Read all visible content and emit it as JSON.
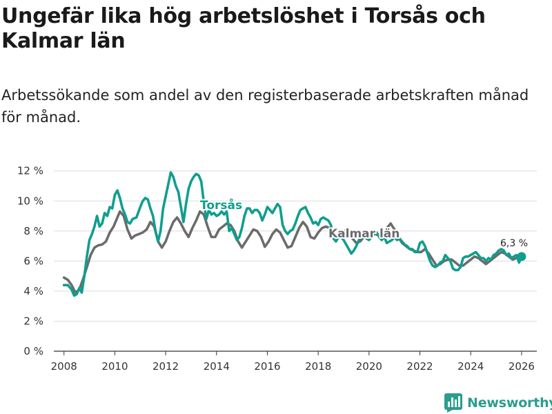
{
  "title": "Ungefär lika hög arbetslöshet i Torsås och Kalmar län",
  "subtitle": "Arbetssökande som andel av den registerbaserade arbetskraften månad för månad.",
  "brand": {
    "name": "Newsworthy",
    "icon": "bar-chart-logo-icon"
  },
  "colors": {
    "torsas": "#0f9e8e",
    "kalmar": "#6b6b6b",
    "grid": "#dcdcdc",
    "text": "#333333"
  },
  "chart_data": {
    "type": "line",
    "xlabel": "",
    "ylabel": "",
    "xlim": [
      2007.6,
      2026.6
    ],
    "ylim": [
      0,
      12.4
    ],
    "x_ticks": [
      2008,
      2010,
      2012,
      2014,
      2016,
      2018,
      2020,
      2022,
      2024,
      2026
    ],
    "x_tick_labels": [
      "2008",
      "2010",
      "2012",
      "2014",
      "2016",
      "2018",
      "2020",
      "2022",
      "2024",
      "2026"
    ],
    "y_ticks": [
      0,
      2,
      4,
      6,
      8,
      10,
      12
    ],
    "y_tick_labels": [
      "0 %",
      "2 %",
      "4 %",
      "6 %",
      "8 %",
      "10 %",
      "12 %"
    ],
    "end_label": "6,3 %",
    "series": [
      {
        "name": "Kalmar län",
        "label": "Kalmar län",
        "points": [
          [
            2008.0,
            4.9
          ],
          [
            2008.15,
            4.75
          ],
          [
            2008.3,
            4.4
          ],
          [
            2008.45,
            3.9
          ],
          [
            2008.6,
            4.1
          ],
          [
            2008.75,
            4.8
          ],
          [
            2008.9,
            5.6
          ],
          [
            2009.05,
            6.4
          ],
          [
            2009.2,
            6.9
          ],
          [
            2009.35,
            7.05
          ],
          [
            2009.5,
            7.1
          ],
          [
            2009.65,
            7.3
          ],
          [
            2009.8,
            7.9
          ],
          [
            2009.95,
            8.3
          ],
          [
            2010.1,
            8.9
          ],
          [
            2010.2,
            9.3
          ],
          [
            2010.35,
            9.0
          ],
          [
            2010.5,
            8.1
          ],
          [
            2010.65,
            7.5
          ],
          [
            2010.8,
            7.7
          ],
          [
            2010.95,
            7.8
          ],
          [
            2011.1,
            7.9
          ],
          [
            2011.25,
            8.1
          ],
          [
            2011.4,
            8.6
          ],
          [
            2011.55,
            8.3
          ],
          [
            2011.7,
            7.3
          ],
          [
            2011.85,
            6.9
          ],
          [
            2012.0,
            7.3
          ],
          [
            2012.15,
            8.0
          ],
          [
            2012.3,
            8.6
          ],
          [
            2012.45,
            8.9
          ],
          [
            2012.6,
            8.5
          ],
          [
            2012.75,
            8.0
          ],
          [
            2012.9,
            7.6
          ],
          [
            2013.05,
            8.2
          ],
          [
            2013.2,
            8.7
          ],
          [
            2013.35,
            9.3
          ],
          [
            2013.5,
            9.1
          ],
          [
            2013.65,
            8.3
          ],
          [
            2013.8,
            7.6
          ],
          [
            2013.95,
            7.6
          ],
          [
            2014.1,
            8.1
          ],
          [
            2014.25,
            8.3
          ],
          [
            2014.4,
            8.5
          ],
          [
            2014.55,
            8.4
          ],
          [
            2014.7,
            8.0
          ],
          [
            2014.85,
            7.3
          ],
          [
            2015.0,
            6.9
          ],
          [
            2015.15,
            7.3
          ],
          [
            2015.3,
            7.7
          ],
          [
            2015.45,
            8.1
          ],
          [
            2015.6,
            8.0
          ],
          [
            2015.75,
            7.6
          ],
          [
            2015.9,
            6.95
          ],
          [
            2016.05,
            7.3
          ],
          [
            2016.2,
            7.8
          ],
          [
            2016.35,
            8.1
          ],
          [
            2016.5,
            7.9
          ],
          [
            2016.65,
            7.4
          ],
          [
            2016.8,
            6.9
          ],
          [
            2016.95,
            7.0
          ],
          [
            2017.1,
            7.6
          ],
          [
            2017.25,
            8.2
          ],
          [
            2017.4,
            8.6
          ],
          [
            2017.55,
            8.3
          ],
          [
            2017.7,
            7.6
          ],
          [
            2017.85,
            7.5
          ],
          [
            2018.0,
            7.9
          ],
          [
            2018.15,
            8.2
          ],
          [
            2018.3,
            8.3
          ],
          [
            2018.45,
            8.2
          ],
          [
            2018.6,
            7.8
          ],
          [
            2018.75,
            7.5
          ],
          [
            2018.9,
            7.8
          ],
          [
            2019.05,
            8.0
          ],
          [
            2019.2,
            7.8
          ],
          [
            2019.35,
            7.5
          ],
          [
            2019.5,
            7.2
          ],
          [
            2019.65,
            7.3
          ],
          [
            2019.8,
            7.6
          ],
          [
            2019.95,
            7.8
          ],
          [
            2020.1,
            7.9
          ],
          [
            2020.25,
            7.8
          ],
          [
            2020.4,
            7.7
          ],
          [
            2020.55,
            7.8
          ],
          [
            2020.7,
            8.2
          ],
          [
            2020.85,
            8.5
          ],
          [
            2021.0,
            8.1
          ],
          [
            2021.15,
            7.6
          ],
          [
            2021.3,
            7.2
          ],
          [
            2021.45,
            7.0
          ],
          [
            2021.6,
            6.8
          ],
          [
            2021.75,
            6.7
          ],
          [
            2021.9,
            6.6
          ],
          [
            2022.05,
            6.6
          ],
          [
            2022.2,
            6.8
          ],
          [
            2022.35,
            6.5
          ],
          [
            2022.5,
            6.1
          ],
          [
            2022.65,
            5.7
          ],
          [
            2022.8,
            5.8
          ],
          [
            2022.95,
            6.0
          ],
          [
            2023.1,
            6.1
          ],
          [
            2023.25,
            6.1
          ],
          [
            2023.4,
            5.9
          ],
          [
            2023.55,
            5.7
          ],
          [
            2023.7,
            5.7
          ],
          [
            2023.85,
            5.9
          ],
          [
            2024.0,
            6.1
          ],
          [
            2024.15,
            6.3
          ],
          [
            2024.3,
            6.2
          ],
          [
            2024.45,
            6.0
          ],
          [
            2024.6,
            5.8
          ],
          [
            2024.75,
            6.0
          ],
          [
            2024.9,
            6.2
          ],
          [
            2025.05,
            6.4
          ],
          [
            2025.2,
            6.6
          ],
          [
            2025.35,
            6.5
          ],
          [
            2025.5,
            6.3
          ],
          [
            2025.65,
            6.1
          ],
          [
            2025.8,
            6.2
          ],
          [
            2025.95,
            6.2
          ],
          [
            2026.0,
            6.25
          ]
        ]
      },
      {
        "name": "Torsås",
        "label": "Torsås",
        "points": [
          [
            2008.0,
            4.4
          ],
          [
            2008.15,
            4.4
          ],
          [
            2008.3,
            4.1
          ],
          [
            2008.4,
            3.7
          ],
          [
            2008.5,
            3.8
          ],
          [
            2008.6,
            4.2
          ],
          [
            2008.7,
            3.9
          ],
          [
            2008.8,
            5.0
          ],
          [
            2008.9,
            6.3
          ],
          [
            2009.0,
            7.4
          ],
          [
            2009.1,
            7.8
          ],
          [
            2009.2,
            8.3
          ],
          [
            2009.3,
            9.0
          ],
          [
            2009.4,
            8.3
          ],
          [
            2009.5,
            8.5
          ],
          [
            2009.6,
            9.2
          ],
          [
            2009.7,
            9.0
          ],
          [
            2009.8,
            9.6
          ],
          [
            2009.9,
            9.5
          ],
          [
            2010.0,
            10.4
          ],
          [
            2010.1,
            10.7
          ],
          [
            2010.2,
            10.2
          ],
          [
            2010.3,
            9.5
          ],
          [
            2010.4,
            9.1
          ],
          [
            2010.5,
            8.6
          ],
          [
            2010.6,
            8.5
          ],
          [
            2010.7,
            8.8
          ],
          [
            2010.85,
            8.9
          ],
          [
            2011.0,
            9.6
          ],
          [
            2011.1,
            10.0
          ],
          [
            2011.2,
            10.2
          ],
          [
            2011.3,
            10.1
          ],
          [
            2011.4,
            9.5
          ],
          [
            2011.5,
            9.0
          ],
          [
            2011.6,
            8.0
          ],
          [
            2011.7,
            7.3
          ],
          [
            2011.8,
            8.0
          ],
          [
            2011.9,
            9.5
          ],
          [
            2012.0,
            10.3
          ],
          [
            2012.1,
            11.1
          ],
          [
            2012.2,
            11.9
          ],
          [
            2012.3,
            11.6
          ],
          [
            2012.4,
            11.0
          ],
          [
            2012.5,
            10.6
          ],
          [
            2012.6,
            9.6
          ],
          [
            2012.7,
            8.6
          ],
          [
            2012.8,
            9.8
          ],
          [
            2012.9,
            10.8
          ],
          [
            2013.0,
            11.3
          ],
          [
            2013.1,
            11.6
          ],
          [
            2013.2,
            11.8
          ],
          [
            2013.3,
            11.7
          ],
          [
            2013.4,
            11.3
          ],
          [
            2013.5,
            9.9
          ],
          [
            2013.6,
            8.8
          ],
          [
            2013.7,
            9.4
          ],
          [
            2013.8,
            9.1
          ],
          [
            2013.9,
            9.2
          ],
          [
            2014.0,
            9.0
          ],
          [
            2014.1,
            9.1
          ],
          [
            2014.2,
            9.3
          ],
          [
            2014.3,
            9.1
          ],
          [
            2014.4,
            9.3
          ],
          [
            2014.5,
            8.0
          ],
          [
            2014.6,
            8.2
          ],
          [
            2014.7,
            7.8
          ],
          [
            2014.8,
            7.4
          ],
          [
            2014.9,
            7.6
          ],
          [
            2015.0,
            8.2
          ],
          [
            2015.1,
            9.0
          ],
          [
            2015.2,
            9.5
          ],
          [
            2015.3,
            9.5
          ],
          [
            2015.4,
            9.2
          ],
          [
            2015.5,
            9.4
          ],
          [
            2015.6,
            9.4
          ],
          [
            2015.7,
            9.2
          ],
          [
            2015.8,
            8.7
          ],
          [
            2015.9,
            9.1
          ],
          [
            2016.0,
            9.6
          ],
          [
            2016.1,
            9.4
          ],
          [
            2016.2,
            9.2
          ],
          [
            2016.3,
            9.5
          ],
          [
            2016.4,
            9.8
          ],
          [
            2016.5,
            9.6
          ],
          [
            2016.6,
            8.4
          ],
          [
            2016.7,
            8.0
          ],
          [
            2016.8,
            7.8
          ],
          [
            2016.9,
            8.0
          ],
          [
            2017.0,
            8.1
          ],
          [
            2017.1,
            8.5
          ],
          [
            2017.2,
            9.0
          ],
          [
            2017.3,
            9.4
          ],
          [
            2017.4,
            9.5
          ],
          [
            2017.5,
            9.6
          ],
          [
            2017.6,
            9.2
          ],
          [
            2017.7,
            8.9
          ],
          [
            2017.8,
            8.5
          ],
          [
            2017.9,
            8.6
          ],
          [
            2018.0,
            8.4
          ],
          [
            2018.1,
            8.8
          ],
          [
            2018.2,
            8.9
          ],
          [
            2018.3,
            8.8
          ],
          [
            2018.4,
            8.7
          ],
          [
            2018.5,
            8.4
          ],
          [
            2018.6,
            7.5
          ],
          [
            2018.7,
            7.3
          ],
          [
            2018.8,
            7.6
          ],
          [
            2018.9,
            7.6
          ],
          [
            2019.0,
            7.4
          ],
          [
            2019.1,
            7.1
          ],
          [
            2019.2,
            6.8
          ],
          [
            2019.3,
            6.5
          ],
          [
            2019.4,
            6.7
          ],
          [
            2019.5,
            7.0
          ],
          [
            2019.6,
            7.4
          ],
          [
            2019.7,
            7.6
          ],
          [
            2019.8,
            7.7
          ],
          [
            2019.9,
            7.5
          ],
          [
            2020.0,
            7.4
          ],
          [
            2020.1,
            7.6
          ],
          [
            2020.2,
            7.8
          ],
          [
            2020.3,
            7.9
          ],
          [
            2020.4,
            7.6
          ],
          [
            2020.5,
            7.4
          ],
          [
            2020.6,
            7.6
          ],
          [
            2020.7,
            7.2
          ],
          [
            2020.8,
            7.3
          ],
          [
            2020.9,
            7.4
          ],
          [
            2021.0,
            7.6
          ],
          [
            2021.1,
            7.4
          ],
          [
            2021.2,
            7.5
          ],
          [
            2021.3,
            7.3
          ],
          [
            2021.4,
            7.1
          ],
          [
            2021.5,
            7.0
          ],
          [
            2021.6,
            6.8
          ],
          [
            2021.7,
            6.8
          ],
          [
            2021.8,
            6.6
          ],
          [
            2021.9,
            6.6
          ],
          [
            2022.0,
            7.2
          ],
          [
            2022.1,
            7.3
          ],
          [
            2022.2,
            7.0
          ],
          [
            2022.3,
            6.5
          ],
          [
            2022.4,
            6.0
          ],
          [
            2022.5,
            5.7
          ],
          [
            2022.6,
            5.6
          ],
          [
            2022.7,
            5.7
          ],
          [
            2022.8,
            5.9
          ],
          [
            2022.9,
            6.0
          ],
          [
            2023.0,
            6.4
          ],
          [
            2023.1,
            6.2
          ],
          [
            2023.2,
            6.0
          ],
          [
            2023.3,
            5.5
          ],
          [
            2023.4,
            5.4
          ],
          [
            2023.5,
            5.4
          ],
          [
            2023.6,
            5.6
          ],
          [
            2023.7,
            6.2
          ],
          [
            2023.8,
            6.3
          ],
          [
            2023.9,
            6.3
          ],
          [
            2024.0,
            6.4
          ],
          [
            2024.1,
            6.5
          ],
          [
            2024.2,
            6.6
          ],
          [
            2024.3,
            6.4
          ],
          [
            2024.4,
            6.2
          ],
          [
            2024.5,
            6.2
          ],
          [
            2024.6,
            6.0
          ],
          [
            2024.7,
            6.2
          ],
          [
            2024.8,
            6.1
          ],
          [
            2024.9,
            6.4
          ],
          [
            2025.0,
            6.5
          ],
          [
            2025.1,
            6.7
          ],
          [
            2025.2,
            6.8
          ],
          [
            2025.3,
            6.7
          ],
          [
            2025.4,
            6.4
          ],
          [
            2025.5,
            6.5
          ],
          [
            2025.6,
            6.2
          ],
          [
            2025.7,
            6.3
          ],
          [
            2025.8,
            6.4
          ],
          [
            2025.9,
            5.9
          ],
          [
            2026.0,
            6.3
          ]
        ]
      }
    ]
  }
}
